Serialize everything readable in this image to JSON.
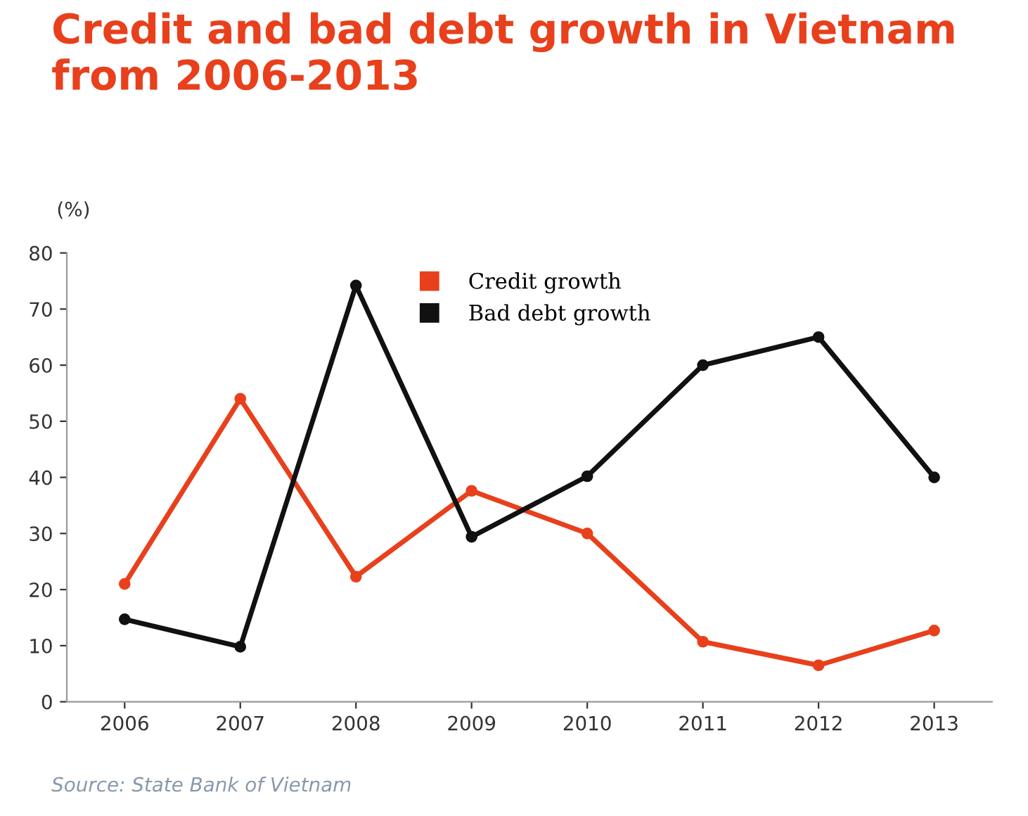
{
  "chart_data": {
    "type": "line",
    "title": "Credit and bad debt growth in Vietnam\nfrom 2006-2013",
    "ylabel": "(%)",
    "categories": [
      "2006",
      "2007",
      "2008",
      "2009",
      "2010",
      "2011",
      "2012",
      "2013"
    ],
    "series": [
      {
        "name": "Credit growth",
        "color": "#e8401c",
        "values": [
          21,
          54,
          22.3,
          37.6,
          30,
          10.7,
          6.5,
          12.7
        ]
      },
      {
        "name": "Bad debt growth",
        "color": "#111111",
        "values": [
          14.7,
          9.8,
          74.2,
          29.4,
          40.2,
          60,
          65,
          40
        ]
      }
    ],
    "ylim": [
      0,
      80
    ],
    "yticks": [
      0,
      10,
      20,
      30,
      40,
      50,
      60,
      70,
      80
    ],
    "grid": false,
    "legend": "top",
    "marker": "circle",
    "line_style": "solid",
    "annotations": [
      "Source: State Bank of Vietnam"
    ]
  }
}
